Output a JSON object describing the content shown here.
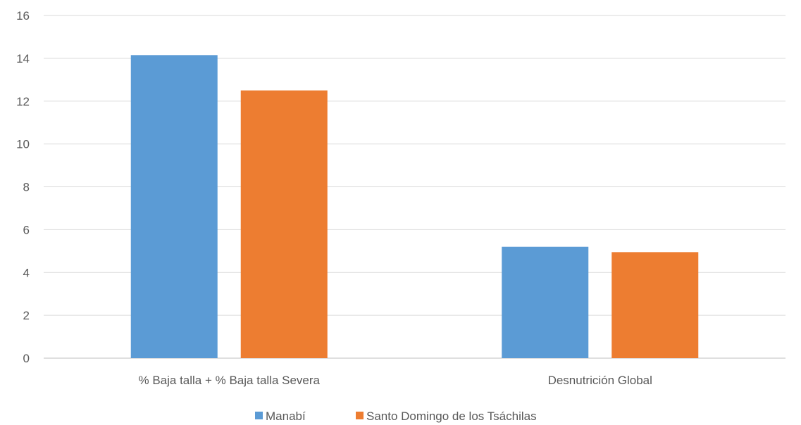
{
  "chart_data": {
    "type": "bar",
    "title": "",
    "xlabel": "",
    "ylabel": "",
    "categories": [
      "% Baja talla + % Baja talla Severa",
      "Desnutrición Global"
    ],
    "series": [
      {
        "name": "Manabí",
        "values": [
          14.15,
          5.2
        ],
        "color": "#5B9BD5"
      },
      {
        "name": "Santo Domingo de los Tsáchilas",
        "values": [
          12.5,
          4.95
        ],
        "color": "#ED7D31"
      }
    ],
    "ylim": [
      0,
      16
    ],
    "yticks": [
      "0",
      "2",
      "4",
      "6",
      "8",
      "10",
      "12",
      "14",
      "16"
    ],
    "grid": true,
    "legend_position": "bottom"
  }
}
